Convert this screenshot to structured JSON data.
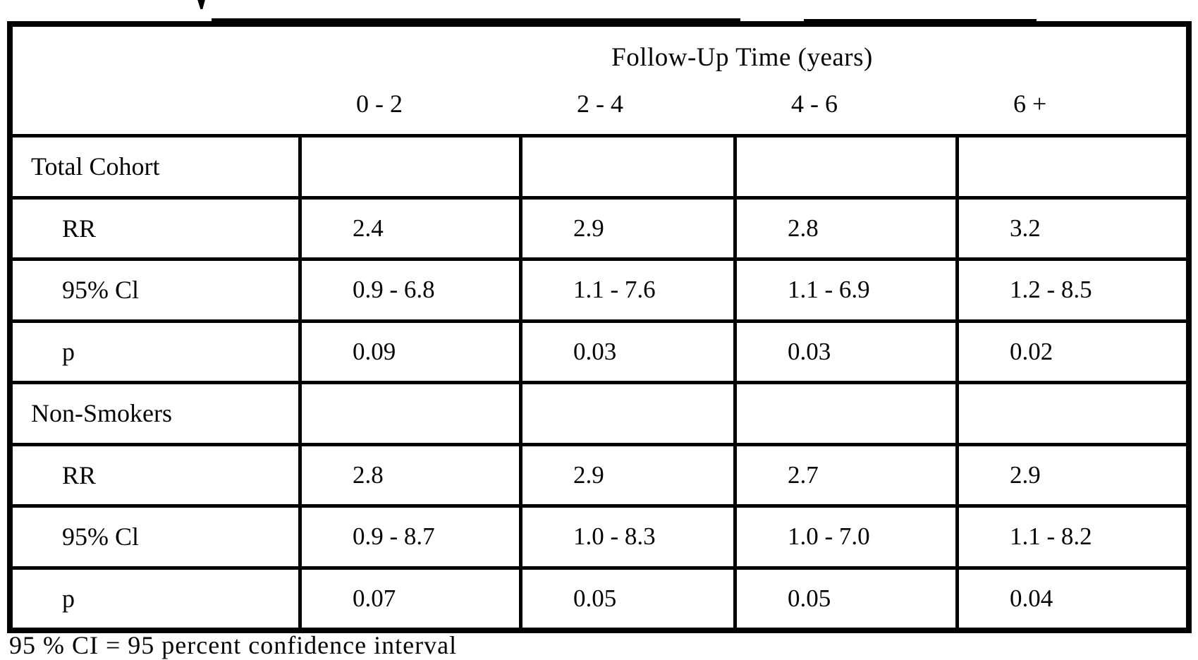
{
  "table": {
    "header": {
      "title": "Follow-Up Time (years)",
      "columns": [
        "0 - 2",
        "2 - 4",
        "4 - 6",
        "6 +"
      ]
    },
    "sections": [
      {
        "label": "Total Cohort",
        "rows": [
          {
            "label": "RR",
            "values": [
              "2.4",
              "2.9",
              "2.8",
              "3.2"
            ]
          },
          {
            "label": "95% Cl",
            "values": [
              "0.9 - 6.8",
              "1.1 - 7.6",
              "1.1 - 6.9",
              "1.2 - 8.5"
            ]
          },
          {
            "label": "p",
            "values": [
              "0.09",
              "0.03",
              "0.03",
              "0.02"
            ]
          }
        ]
      },
      {
        "label": "Non-Smokers",
        "rows": [
          {
            "label": "RR",
            "values": [
              "2.8",
              "2.9",
              "2.7",
              "2.9"
            ]
          },
          {
            "label": "95% Cl",
            "values": [
              "0.9 - 8.7",
              "1.0 - 8.3",
              "1.0 - 7.0",
              "1.1 - 8.2"
            ]
          },
          {
            "label": "p",
            "values": [
              "0.07",
              "0.05",
              "0.05",
              "0.04"
            ]
          }
        ]
      }
    ],
    "footnote": "95 % CI = 95 percent confidence interval",
    "ink_color": "#000000",
    "paper_color": "#ffffff"
  }
}
